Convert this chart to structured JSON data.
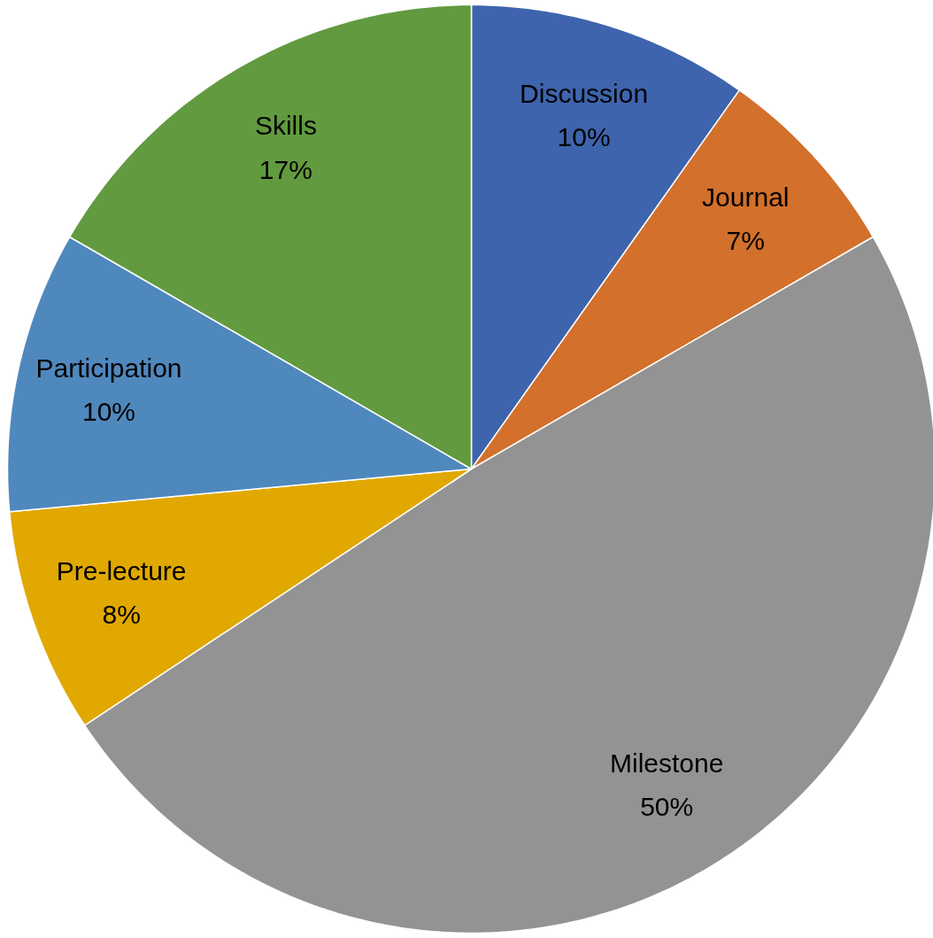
{
  "chart_data": {
    "type": "pie",
    "categories": [
      "Discussion",
      "Journal",
      "Milestone",
      "Pre-lecture",
      "Participation",
      "Skills"
    ],
    "values": [
      10,
      7,
      50,
      8,
      10,
      17
    ],
    "value_labels": [
      "10%",
      "7%",
      "50%",
      "8%",
      "10%",
      "17%"
    ],
    "colors": [
      "#3e64ad",
      "#d2702c",
      "#939393",
      "#e0a800",
      "#4f88bd",
      "#629a40"
    ]
  }
}
